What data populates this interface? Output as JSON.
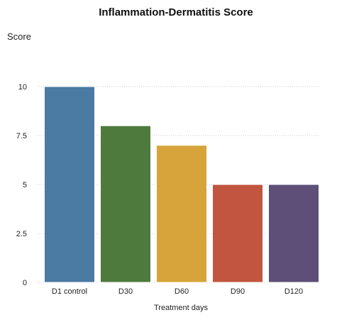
{
  "chart_data": {
    "type": "bar",
    "title": "Inflammation-Dermatitis Score",
    "ylabel": "Score",
    "xlabel": "Treatment days",
    "categories": [
      "D1 control",
      "D30",
      "D60",
      "D90",
      "D120"
    ],
    "values": [
      10,
      8,
      7,
      5,
      5
    ],
    "colors": [
      "#4b7aa3",
      "#4f7a3e",
      "#d6a43a",
      "#c2553f",
      "#5d4f78"
    ],
    "ylim": [
      0,
      10
    ],
    "yticks": [
      0,
      2.5,
      5,
      7.5,
      10
    ],
    "yticklabels": [
      "0",
      "2.5",
      "5",
      "7.5",
      "10"
    ],
    "grid": true,
    "legend": false
  }
}
